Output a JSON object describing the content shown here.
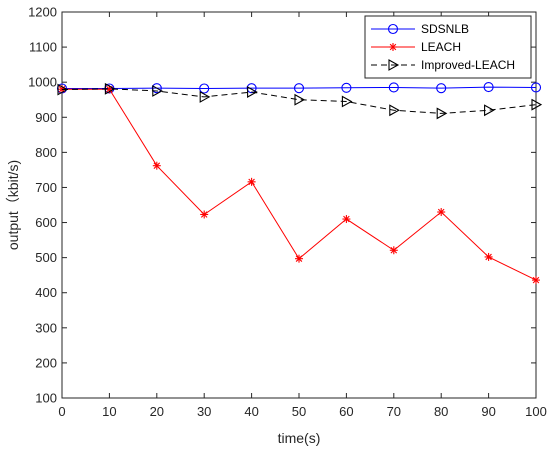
{
  "chart_data": {
    "type": "line",
    "title": "",
    "xlabel": "time(s)",
    "ylabel": "output（kbit/s)",
    "x": [
      0,
      10,
      20,
      30,
      40,
      50,
      60,
      70,
      80,
      90,
      100
    ],
    "xlim": [
      0,
      100
    ],
    "ylim": [
      100,
      1200
    ],
    "xticks": [
      0,
      10,
      20,
      30,
      40,
      50,
      60,
      70,
      80,
      90,
      100
    ],
    "yticks": [
      100,
      200,
      300,
      400,
      500,
      600,
      700,
      800,
      900,
      1000,
      1100,
      1200
    ],
    "grid": false,
    "legend_position": "top-right",
    "series": [
      {
        "name": "SDSNLB",
        "color": "#0000ff",
        "marker": "circle",
        "line": "solid",
        "values": [
          982,
          982,
          983,
          982,
          983,
          983,
          984,
          985,
          983,
          986,
          985
        ]
      },
      {
        "name": "LEACH",
        "color": "#ff0000",
        "marker": "asterisk",
        "line": "solid",
        "values": [
          980,
          980,
          762,
          623,
          716,
          497,
          610,
          521,
          630,
          502,
          436
        ]
      },
      {
        "name": "Improved-LEACH",
        "color": "#000000",
        "marker": "triangle-right",
        "line": "dashed",
        "values": [
          979,
          981,
          975,
          958,
          972,
          950,
          945,
          920,
          911,
          920,
          936
        ]
      }
    ]
  }
}
